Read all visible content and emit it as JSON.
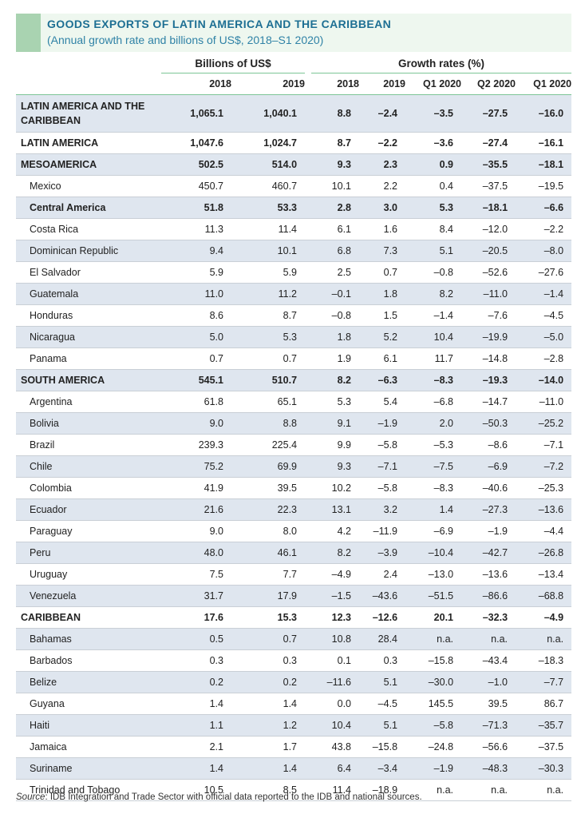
{
  "header": {
    "title": "GOODS EXPORTS OF LATIN AMERICA AND THE CARIBBEAN",
    "subtitle": "(Annual growth rate and billions of US$, 2018–S1 2020)"
  },
  "columns": {
    "billions_label": "Billions of US$",
    "growth_label": "Growth rates (%)",
    "billions_years": [
      "2018",
      "2019"
    ],
    "growth_periods": [
      "2018",
      "2019",
      "Q1 2020",
      "Q2 2020",
      "Q1 2020"
    ]
  },
  "rows": [
    {
      "label": "LATIN AMERICA AND THE CARIBBEAN",
      "values": [
        "1,065.1",
        "1,040.1",
        "8.8",
        "–2.4",
        "–3.5",
        "–27.5",
        "–16.0"
      ],
      "bold": true,
      "shade": true,
      "indent": false,
      "tall": true
    },
    {
      "label": "LATIN AMERICA",
      "values": [
        "1,047.6",
        "1,024.7",
        "8.7",
        "–2.2",
        "–3.6",
        "–27.4",
        "–16.1"
      ],
      "bold": true,
      "shade": false,
      "indent": false
    },
    {
      "label": "MESOAMERICA",
      "values": [
        "502.5",
        "514.0",
        "9.3",
        "2.3",
        "0.9",
        "–35.5",
        "–18.1"
      ],
      "bold": true,
      "shade": true,
      "indent": false
    },
    {
      "label": "Mexico",
      "values": [
        "450.7",
        "460.7",
        "10.1",
        "2.2",
        "0.4",
        "–37.5",
        "–19.5"
      ],
      "bold": false,
      "shade": false,
      "indent": true
    },
    {
      "label": "Central America",
      "values": [
        "51.8",
        "53.3",
        "2.8",
        "3.0",
        "5.3",
        "–18.1",
        "–6.6"
      ],
      "bold": true,
      "shade": true,
      "indent": true
    },
    {
      "label": "Costa Rica",
      "values": [
        "11.3",
        "11.4",
        "6.1",
        "1.6",
        "8.4",
        "–12.0",
        "–2.2"
      ],
      "bold": false,
      "shade": false,
      "indent": true
    },
    {
      "label": "Dominican Republic",
      "values": [
        "9.4",
        "10.1",
        "6.8",
        "7.3",
        "5.1",
        "–20.5",
        "–8.0"
      ],
      "bold": false,
      "shade": true,
      "indent": true
    },
    {
      "label": "El Salvador",
      "values": [
        "5.9",
        "5.9",
        "2.5",
        "0.7",
        "–0.8",
        "–52.6",
        "–27.6"
      ],
      "bold": false,
      "shade": false,
      "indent": true
    },
    {
      "label": "Guatemala",
      "values": [
        "11.0",
        "11.2",
        "–0.1",
        "1.8",
        "8.2",
        "–11.0",
        "–1.4"
      ],
      "bold": false,
      "shade": true,
      "indent": true
    },
    {
      "label": "Honduras",
      "values": [
        "8.6",
        "8.7",
        "–0.8",
        "1.5",
        "–1.4",
        "–7.6",
        "–4.5"
      ],
      "bold": false,
      "shade": false,
      "indent": true
    },
    {
      "label": "Nicaragua",
      "values": [
        "5.0",
        "5.3",
        "1.8",
        "5.2",
        "10.4",
        "–19.9",
        "–5.0"
      ],
      "bold": false,
      "shade": true,
      "indent": true
    },
    {
      "label": "Panama",
      "values": [
        "0.7",
        "0.7",
        "1.9",
        "6.1",
        "11.7",
        "–14.8",
        "–2.8"
      ],
      "bold": false,
      "shade": false,
      "indent": true
    },
    {
      "label": "SOUTH AMERICA",
      "values": [
        "545.1",
        "510.7",
        "8.2",
        "–6.3",
        "–8.3",
        "–19.3",
        "–14.0"
      ],
      "bold": true,
      "shade": true,
      "indent": false
    },
    {
      "label": "Argentina",
      "values": [
        "61.8",
        "65.1",
        "5.3",
        "5.4",
        "–6.8",
        "–14.7",
        "–11.0"
      ],
      "bold": false,
      "shade": false,
      "indent": true
    },
    {
      "label": "Bolivia",
      "values": [
        "9.0",
        "8.8",
        "9.1",
        "–1.9",
        "2.0",
        "–50.3",
        "–25.2"
      ],
      "bold": false,
      "shade": true,
      "indent": true
    },
    {
      "label": "Brazil",
      "values": [
        "239.3",
        "225.4",
        "9.9",
        "–5.8",
        "–5.3",
        "–8.6",
        "–7.1"
      ],
      "bold": false,
      "shade": false,
      "indent": true
    },
    {
      "label": "Chile",
      "values": [
        "75.2",
        "69.9",
        "9.3",
        "–7.1",
        "–7.5",
        "–6.9",
        "–7.2"
      ],
      "bold": false,
      "shade": true,
      "indent": true
    },
    {
      "label": "Colombia",
      "values": [
        "41.9",
        "39.5",
        "10.2",
        "–5.8",
        "–8.3",
        "–40.6",
        "–25.3"
      ],
      "bold": false,
      "shade": false,
      "indent": true
    },
    {
      "label": "Ecuador",
      "values": [
        "21.6",
        "22.3",
        "13.1",
        "3.2",
        "1.4",
        "–27.3",
        "–13.6"
      ],
      "bold": false,
      "shade": true,
      "indent": true
    },
    {
      "label": "Paraguay",
      "values": [
        "9.0",
        "8.0",
        "4.2",
        "–11.9",
        "–6.9",
        "–1.9",
        "–4.4"
      ],
      "bold": false,
      "shade": false,
      "indent": true
    },
    {
      "label": "Peru",
      "values": [
        "48.0",
        "46.1",
        "8.2",
        "–3.9",
        "–10.4",
        "–42.7",
        "–26.8"
      ],
      "bold": false,
      "shade": true,
      "indent": true
    },
    {
      "label": "Uruguay",
      "values": [
        "7.5",
        "7.7",
        "–4.9",
        "2.4",
        "–13.0",
        "–13.6",
        "–13.4"
      ],
      "bold": false,
      "shade": false,
      "indent": true
    },
    {
      "label": "Venezuela",
      "values": [
        "31.7",
        "17.9",
        "–1.5",
        "–43.6",
        "–51.5",
        "–86.6",
        "–68.8"
      ],
      "bold": false,
      "shade": true,
      "indent": true
    },
    {
      "label": "CARIBBEAN",
      "values": [
        "17.6",
        "15.3",
        "12.3",
        "–12.6",
        "20.1",
        "–32.3",
        "–4.9"
      ],
      "bold": true,
      "shade": false,
      "indent": false
    },
    {
      "label": "Bahamas",
      "values": [
        "0.5",
        "0.7",
        "10.8",
        "28.4",
        "n.a.",
        "n.a.",
        "n.a."
      ],
      "bold": false,
      "shade": true,
      "indent": true
    },
    {
      "label": "Barbados",
      "values": [
        "0.3",
        "0.3",
        "0.1",
        "0.3",
        "–15.8",
        "–43.4",
        "–18.3"
      ],
      "bold": false,
      "shade": false,
      "indent": true
    },
    {
      "label": "Belize",
      "values": [
        "0.2",
        "0.2",
        "–11.6",
        "5.1",
        "–30.0",
        "–1.0",
        "–7.7"
      ],
      "bold": false,
      "shade": true,
      "indent": true
    },
    {
      "label": "Guyana",
      "values": [
        "1.4",
        "1.4",
        "0.0",
        "–4.5",
        "145.5",
        "39.5",
        "86.7"
      ],
      "bold": false,
      "shade": false,
      "indent": true
    },
    {
      "label": "Haiti",
      "values": [
        "1.1",
        "1.2",
        "10.4",
        "5.1",
        "–5.8",
        "–71.3",
        "–35.7"
      ],
      "bold": false,
      "shade": true,
      "indent": true
    },
    {
      "label": "Jamaica",
      "values": [
        "2.1",
        "1.7",
        "43.8",
        "–15.8",
        "–24.8",
        "–56.6",
        "–37.5"
      ],
      "bold": false,
      "shade": false,
      "indent": true
    },
    {
      "label": "Suriname",
      "values": [
        "1.4",
        "1.4",
        "6.4",
        "–3.4",
        "–1.9",
        "–48.3",
        "–30.3"
      ],
      "bold": false,
      "shade": true,
      "indent": true
    },
    {
      "label": "Trinidad and Tobago",
      "values": [
        "10.5",
        "8.5",
        "11.4",
        "–18.9",
        "n.a.",
        "n.a.",
        "n.a."
      ],
      "bold": false,
      "shade": false,
      "indent": true
    }
  ],
  "footer": {
    "source_label": "Source",
    "source_text": ": IDB Integration and Trade Sector with official data reported to the IDB and national sources."
  },
  "colors": {
    "title": "#1d6f93",
    "subtitle": "#2f82a6",
    "accent": "#a9d3b1",
    "title_bg": "#eef7ef",
    "shade": "#dfe6ef",
    "rule": "#7dc596"
  }
}
